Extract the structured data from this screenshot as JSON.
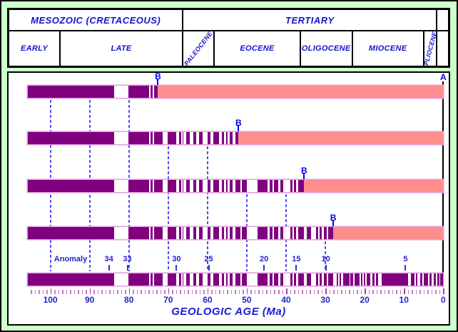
{
  "colors": {
    "background": "#ccffcc",
    "normal_polarity": "#800080",
    "unrecorded_pink": "#ff8d8d",
    "bar_outline": "#df9fdf",
    "header_text": "#1414cc",
    "gridline_blue": "#4d4dff",
    "axis_tick": "#cc77cc",
    "axis_tick_major": "#a23fa2",
    "point_label_blue": "#0000ee",
    "border": "#000000"
  },
  "header": {
    "row1": [
      {
        "label": "MESOZOIC (CRETACEOUS)",
        "from_ma": 110.6,
        "to_ma": 66.3
      },
      {
        "label": "TERTIARY",
        "from_ma": 66.3,
        "to_ma": 1.6
      },
      {
        "label": "",
        "from_ma": 1.6,
        "to_ma": -1.4
      }
    ],
    "row2": [
      {
        "label": "EARLY",
        "from_ma": 110.6,
        "to_ma": 97.6
      },
      {
        "label": "LATE",
        "from_ma": 97.6,
        "to_ma": 66.3
      },
      {
        "label": "PALEOCENE",
        "from_ma": 66.3,
        "to_ma": 58.3,
        "rotate": -52
      },
      {
        "label": "EOCENE",
        "from_ma": 58.3,
        "to_ma": 36.4
      },
      {
        "label": "OLIGOCENE",
        "from_ma": 36.4,
        "to_ma": 23.2
      },
      {
        "label": "MIOCENE",
        "from_ma": 23.2,
        "to_ma": 5.0
      },
      {
        "label": "PLIOCENE",
        "from_ma": 5.0,
        "to_ma": 1.6,
        "rotate": -75
      },
      {
        "label": "",
        "from_ma": 1.6,
        "to_ma": -1.4
      }
    ]
  },
  "chart_data": {
    "type": "bar",
    "title": "",
    "xlabel": "GEOLOGIC AGE (Ma)",
    "x_axis": {
      "unit": "Ma",
      "min": 0,
      "max": 105.8,
      "direction": "age increases to the left",
      "minor_tick_every": 1,
      "major_tick_every": 10,
      "tick_labels": [
        "100",
        "90",
        "80",
        "70",
        "60",
        "50",
        "40",
        "30",
        "20",
        "10",
        "0"
      ]
    },
    "normal_polarity_intervals_ma": [
      [
        105.9,
        83.8
      ],
      [
        80.2,
        74.9
      ],
      [
        74.5,
        74.0
      ],
      [
        73.6,
        71.5
      ],
      [
        70.1,
        67.9
      ],
      [
        67.3,
        66.7
      ],
      [
        66.4,
        66.1
      ],
      [
        65.5,
        64.6
      ],
      [
        63.6,
        62.9
      ],
      [
        62.2,
        61.3
      ],
      [
        60.0,
        59.2
      ],
      [
        58.6,
        57.0
      ],
      [
        56.3,
        55.8
      ],
      [
        55.3,
        54.9
      ],
      [
        54.4,
        53.7
      ],
      [
        52.9,
        51.7
      ],
      [
        51.2,
        49.9
      ],
      [
        47.2,
        44.8
      ],
      [
        44.2,
        43.4
      ],
      [
        43.1,
        42.0
      ],
      [
        41.4,
        40.8
      ],
      [
        39.0,
        38.4
      ],
      [
        38.0,
        37.4
      ],
      [
        36.9,
        35.4
      ],
      [
        34.8,
        33.6
      ],
      [
        32.4,
        31.9
      ],
      [
        31.5,
        30.9
      ],
      [
        30.3,
        29.6
      ],
      [
        29.2,
        28.0
      ],
      [
        27.2,
        26.7
      ],
      [
        26.4,
        26.0
      ],
      [
        25.4,
        23.9
      ],
      [
        23.6,
        23.0
      ],
      [
        22.5,
        21.3
      ],
      [
        20.9,
        20.5
      ],
      [
        20.2,
        19.8
      ],
      [
        19.4,
        18.5
      ],
      [
        18.0,
        17.4
      ],
      [
        17.1,
        16.6
      ],
      [
        15.6,
        8.9
      ],
      [
        8.3,
        7.4
      ],
      [
        7.0,
        6.5
      ],
      [
        5.9,
        5.4
      ],
      [
        5.0,
        3.9
      ],
      [
        3.5,
        3.0
      ],
      [
        2.5,
        1.8
      ],
      [
        1.5,
        1.0
      ],
      [
        0.7,
        0.0
      ]
    ],
    "profiles": [
      {
        "end_point_label": "B",
        "record_ends_ma": 72.6
      },
      {
        "end_point_label": "B",
        "record_ends_ma": 52.1
      },
      {
        "end_point_label": "B",
        "record_ends_ma": 35.4
      },
      {
        "end_point_label": "B",
        "record_ends_ma": 28.0
      }
    ],
    "reference_row": {
      "oldest_ma": 105.8,
      "youngest_ma": 0
    },
    "ridge_axis_label": "A",
    "anomaly_labels": {
      "title": "Anomaly",
      "items": [
        {
          "anomaly": "34",
          "age_ma": 85.1
        },
        {
          "anomaly": "33",
          "age_ma": 80.4
        },
        {
          "anomaly": "30",
          "age_ma": 67.9
        },
        {
          "anomaly": "25",
          "age_ma": 59.7
        },
        {
          "anomaly": "20",
          "age_ma": 45.6
        },
        {
          "anomaly": "15",
          "age_ma": 37.4
        },
        {
          "anomaly": "10",
          "age_ma": 29.9
        },
        {
          "anomaly": "5",
          "age_ma": 9.6
        }
      ]
    },
    "dashed_gridlines": [
      {
        "ma": 100,
        "starts_below_profile": 1
      },
      {
        "ma": 90,
        "starts_below_profile": 1
      },
      {
        "ma": 80,
        "starts_below_profile": 1
      },
      {
        "ma": 70,
        "starts_below_profile": 2
      },
      {
        "ma": 60,
        "starts_below_profile": 2
      },
      {
        "ma": 50,
        "starts_below_profile": 3
      },
      {
        "ma": 40,
        "starts_below_profile": 3
      },
      {
        "ma": 30,
        "starts_below_profile": 4
      }
    ]
  }
}
